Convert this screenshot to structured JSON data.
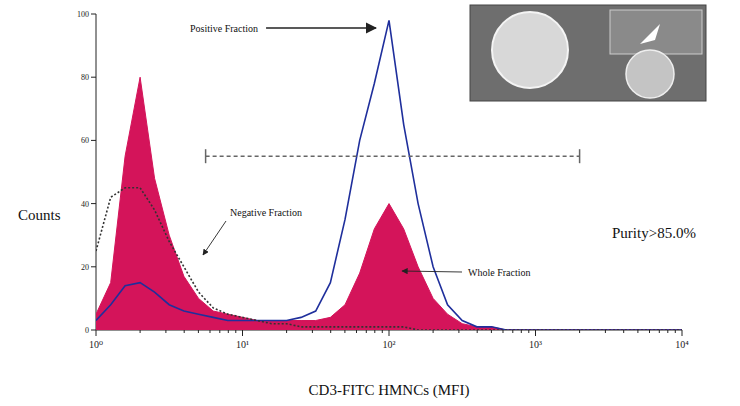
{
  "chart_data": {
    "type": "histogram",
    "x_label": "CD3-FITC HMNCs (MFI)",
    "y_label": "Counts",
    "x": [
      1,
      1.26,
      1.58,
      2,
      2.51,
      3.16,
      3.98,
      5.01,
      6.31,
      7.94,
      10,
      12.6,
      15.8,
      20,
      25.1,
      31.6,
      39.8,
      50.1,
      63.1,
      79.4,
      100,
      126,
      158,
      200,
      251,
      316,
      398,
      501,
      631,
      794,
      1000,
      10000
    ],
    "series": [
      {
        "name": "Whole Fraction",
        "type": "area",
        "color": "#d4145a",
        "line_style": "solid",
        "values": [
          5,
          15,
          55,
          80,
          48,
          30,
          17,
          10,
          6,
          5,
          4,
          3,
          3,
          3,
          3,
          3,
          4,
          8,
          18,
          32,
          40,
          32,
          20,
          10,
          5,
          2,
          1,
          1,
          0,
          0,
          0,
          0
        ]
      },
      {
        "name": "Positive Fraction",
        "type": "line",
        "color": "#1f2f9c",
        "line_style": "solid",
        "values": [
          3,
          8,
          14,
          15,
          12,
          8,
          6,
          5,
          4,
          3,
          3,
          3,
          3,
          3,
          4,
          6,
          15,
          35,
          60,
          78,
          98,
          65,
          40,
          20,
          8,
          3,
          1,
          1,
          0,
          0,
          0,
          0
        ]
      },
      {
        "name": "Negative Fraction",
        "type": "line",
        "color": "#333333",
        "line_style": "dotted",
        "values": [
          25,
          42,
          45,
          45,
          38,
          28,
          20,
          12,
          7,
          5,
          4,
          3,
          2,
          2,
          1,
          1,
          1,
          1,
          1,
          1,
          1,
          1,
          0,
          0,
          0,
          0,
          0,
          0,
          0,
          0,
          0,
          0
        ]
      }
    ],
    "gate": {
      "x": [
        5.6,
        2000
      ],
      "y": 55
    },
    "annotations": [
      "Purity>85.0%"
    ],
    "log": "x",
    "xlim": [
      1,
      10000
    ],
    "xticks": [
      {
        "value": 1,
        "label": "10⁰"
      },
      {
        "value": 10,
        "label": "10¹"
      },
      {
        "value": 100,
        "label": "10²"
      },
      {
        "value": 1000,
        "label": "10³"
      },
      {
        "value": 10000,
        "label": "10⁴"
      }
    ],
    "ylim": [
      0,
      100
    ],
    "yticks": [
      0,
      20,
      40,
      60,
      80,
      100
    ],
    "grid": false
  }
}
